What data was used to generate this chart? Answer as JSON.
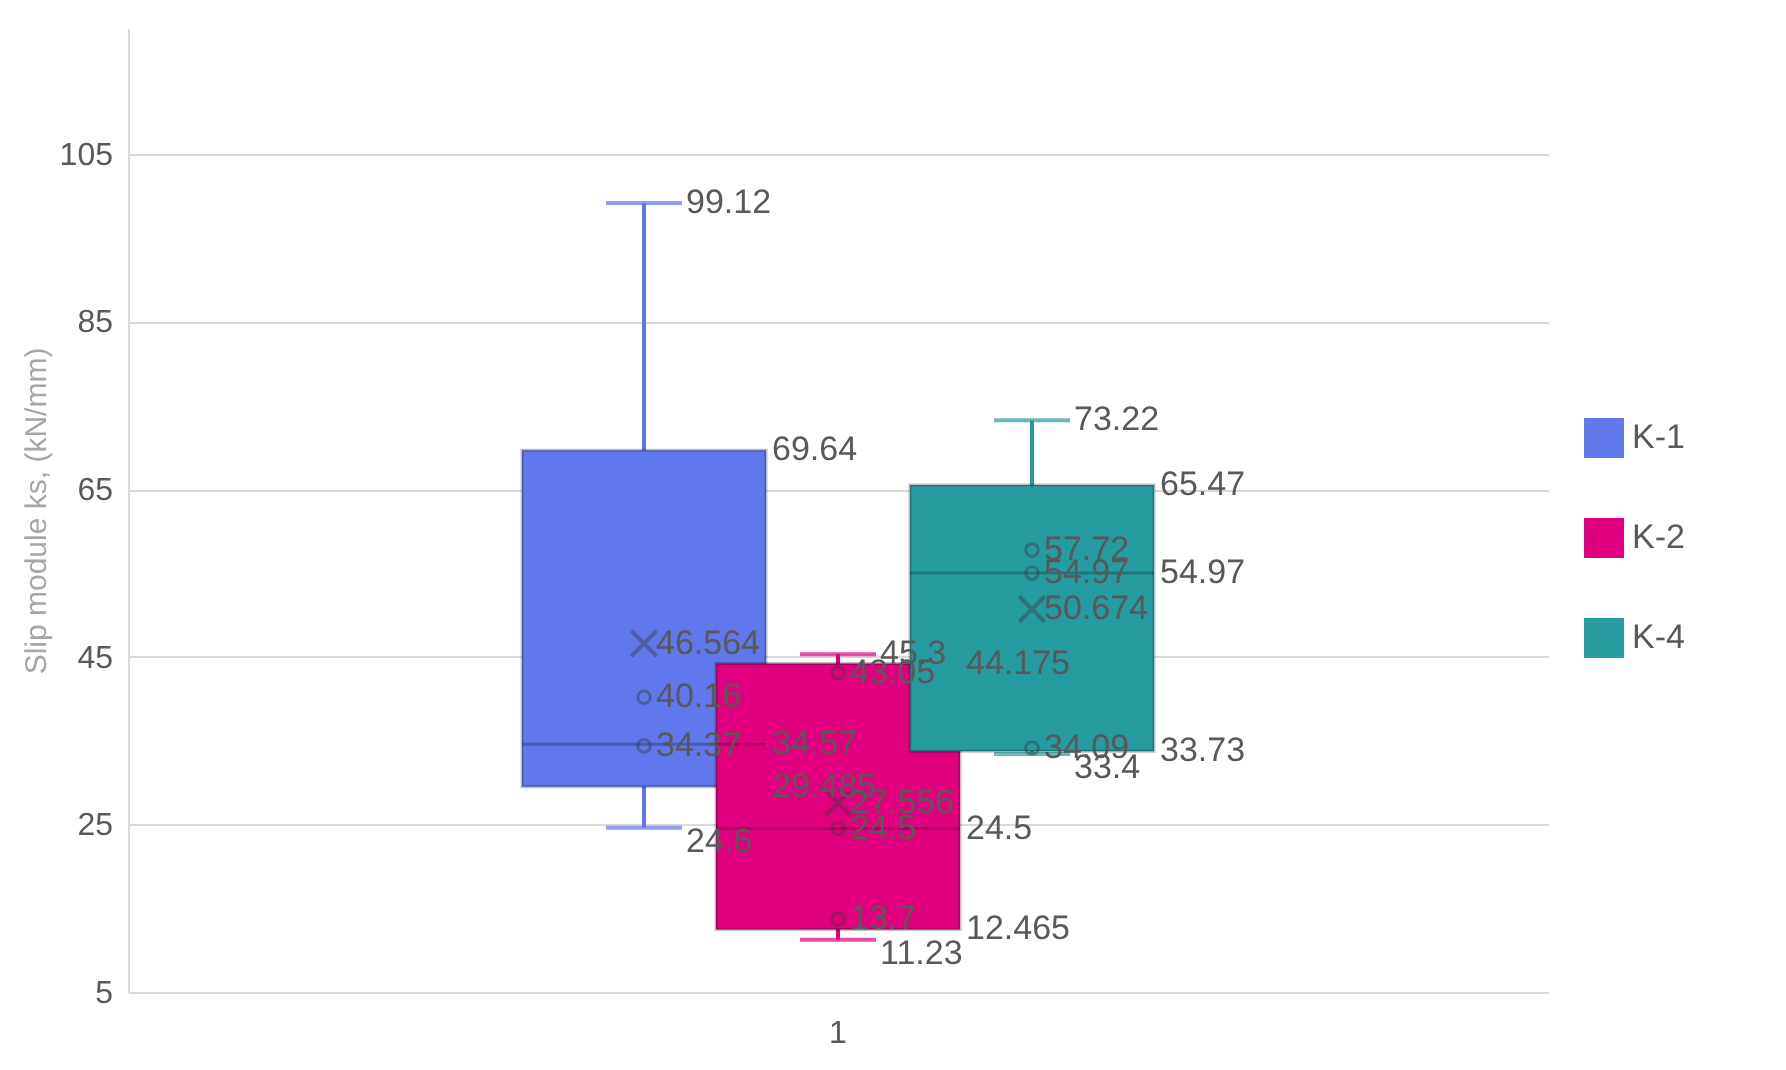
{
  "chart_data": {
    "type": "box",
    "ylabel": "Slip module ks, (kN/mm)",
    "categories": [
      "1"
    ],
    "series": [
      {
        "name": "K-1",
        "color": "#6078ec",
        "boxes": [
          {
            "low": 24.6,
            "q1": 29.485,
            "median": 34.57,
            "q3": 69.64,
            "high": 99.12,
            "mean": 46.564,
            "outliers": [
              40.16,
              34.37
            ]
          }
        ]
      },
      {
        "name": "K-2",
        "color": "#e0007f",
        "boxes": [
          {
            "low": 11.23,
            "q1": 12.465,
            "median": 24.5,
            "q3": 44.175,
            "high": 45.3,
            "mean": 27.556,
            "outliers": [
              43.05,
              24.5,
              13.7
            ]
          }
        ]
      },
      {
        "name": "K-4",
        "color": "#269ca0",
        "boxes": [
          {
            "low": 33.4,
            "q1": 33.73,
            "median": 54.97,
            "q3": 65.47,
            "high": 73.22,
            "mean": 50.674,
            "outliers": [
              57.72,
              54.97,
              34.09
            ]
          }
        ]
      }
    ],
    "annotations": [
      "99.12",
      "69.64",
      "34.57",
      "29.485",
      "24.6",
      "46.564",
      "40.16",
      "34.37",
      "45.3",
      "44.175",
      "24.5",
      "12.465",
      "11.23",
      "27.556",
      "43.05",
      "24.5",
      "13.7",
      "73.22",
      "65.47",
      "54.97",
      "33.73",
      "33.4",
      "50.674",
      "57.72",
      "54.97",
      "34.09"
    ],
    "ylim": [
      5,
      120
    ],
    "yticks": [
      5,
      25,
      45,
      65,
      85,
      105
    ],
    "grid": "y",
    "legend": "right"
  }
}
